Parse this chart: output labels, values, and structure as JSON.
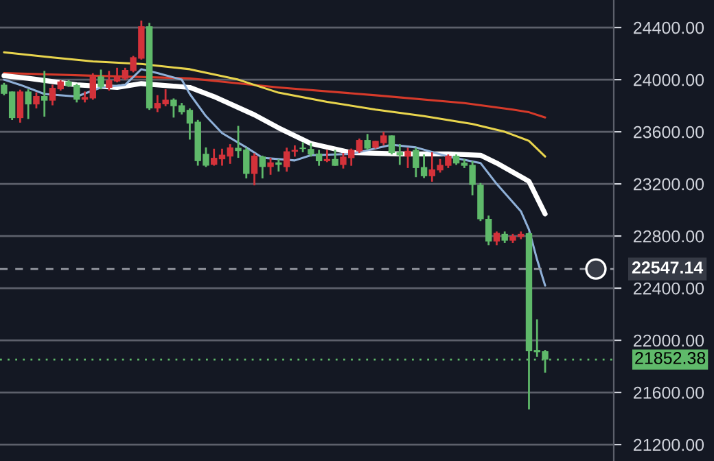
{
  "chart_data": {
    "type": "candlestick",
    "categories": [
      null,
      null,
      null,
      null,
      null,
      null,
      null,
      null,
      null,
      null,
      null,
      null,
      null,
      null,
      null,
      null,
      null,
      null,
      null,
      null,
      null,
      null,
      null,
      null,
      null,
      null,
      null,
      null,
      null,
      null,
      null,
      null,
      null,
      null,
      null,
      null,
      null,
      null,
      null,
      null,
      null,
      null,
      null,
      null,
      null,
      null,
      null,
      null,
      null,
      null,
      null,
      null,
      null,
      null,
      null,
      null,
      null,
      null,
      null,
      null,
      null,
      null,
      null,
      null,
      null,
      null,
      null,
      null,
      null,
      null,
      null,
      null,
      null,
      null,
      null,
      null
    ],
    "ohlc": [
      [
        23961,
        23975,
        23880,
        23891
      ],
      [
        23909,
        23909,
        23690,
        23705
      ],
      [
        23705,
        23923,
        23670,
        23909
      ],
      [
        23909,
        23926,
        23698,
        23810
      ],
      [
        23810,
        23902,
        23779,
        23874
      ],
      [
        23874,
        24067,
        23716,
        23839
      ],
      [
        23839,
        23961,
        23803,
        23937
      ],
      [
        23926,
        23996,
        23916,
        23986
      ],
      [
        23986,
        23996,
        23944,
        23951
      ],
      [
        23958,
        23968,
        23825,
        23846
      ],
      [
        23846,
        23909,
        23825,
        23867
      ],
      [
        23856,
        24049,
        23846,
        24025
      ],
      [
        24025,
        24077,
        23926,
        23944
      ],
      [
        23937,
        24067,
        23916,
        23996
      ],
      [
        23986,
        24091,
        23979,
        24021
      ],
      [
        24007,
        24091,
        23996,
        24074
      ],
      [
        24067,
        24182,
        24056,
        24172
      ],
      [
        24161,
        24453,
        24154,
        24410
      ],
      [
        24410,
        24435,
        23768,
        23779
      ],
      [
        23779,
        23881,
        23751,
        23821
      ],
      [
        23811,
        23926,
        23796,
        23846
      ],
      [
        23846,
        23856,
        23709,
        23796
      ],
      [
        23803,
        23821,
        23733,
        23751
      ],
      [
        23768,
        23779,
        23540,
        23663
      ],
      [
        23677,
        23691,
        23340,
        23375
      ],
      [
        23431,
        23480,
        23330,
        23340
      ],
      [
        23347,
        23470,
        23340,
        23400
      ],
      [
        23389,
        23470,
        23340,
        23424
      ],
      [
        23410,
        23505,
        23354,
        23480
      ],
      [
        23477,
        23645,
        23400,
        23452
      ],
      [
        23463,
        23480,
        23242,
        23277
      ],
      [
        23277,
        23435,
        23189,
        23417
      ],
      [
        23410,
        23417,
        23242,
        23330
      ],
      [
        23330,
        23400,
        23270,
        23365
      ],
      [
        23365,
        23389,
        23295,
        23347
      ],
      [
        23329,
        23478,
        23294,
        23450
      ],
      [
        23447,
        23496,
        23409,
        23461
      ],
      [
        23478,
        23520,
        23443,
        23468
      ],
      [
        23468,
        23513,
        23409,
        23426
      ],
      [
        23433,
        23461,
        23339,
        23374
      ],
      [
        23374,
        23461,
        23367,
        23391
      ],
      [
        23391,
        23461,
        23339,
        23339
      ],
      [
        23346,
        23437,
        23318,
        23409
      ],
      [
        23398,
        23471,
        23339,
        23461
      ],
      [
        23450,
        23548,
        23437,
        23537
      ],
      [
        23537,
        23583,
        23461,
        23471
      ],
      [
        23478,
        23530,
        23471,
        23530
      ],
      [
        23513,
        23600,
        23496,
        23572
      ],
      [
        23572,
        23572,
        23426,
        23437
      ],
      [
        23443,
        23506,
        23346,
        23419
      ],
      [
        23409,
        23478,
        23322,
        23454
      ],
      [
        23461,
        23478,
        23252,
        23322
      ],
      [
        23329,
        23426,
        23245,
        23259
      ],
      [
        23259,
        23443,
        23217,
        23311
      ],
      [
        23304,
        23391,
        23287,
        23346
      ],
      [
        23339,
        23426,
        23322,
        23416
      ],
      [
        23416,
        23426,
        23346,
        23357
      ],
      [
        23363,
        23391,
        23322,
        23339
      ],
      [
        23346,
        23374,
        23113,
        23193
      ],
      [
        23193,
        23207,
        22915,
        22929
      ],
      [
        22932,
        22957,
        22730,
        22758
      ],
      [
        22758,
        22835,
        22730,
        22824
      ],
      [
        22817,
        22835,
        22748,
        22765
      ],
      [
        22765,
        22817,
        22748,
        22800
      ],
      [
        22793,
        22835,
        22776,
        22817
      ],
      [
        22821,
        22828,
        21470,
        21916
      ],
      [
        21926,
        22161,
        21874,
        21909
      ],
      [
        21916,
        21926,
        21751,
        21852
      ],
      null,
      null,
      null,
      null,
      null,
      null,
      null,
      null
    ],
    "colors": [
      "#5fb96a",
      "#5fb96a",
      "#d3323a",
      "#5fb96a",
      "#d3323a",
      "#5fb96a",
      "#d3323a",
      "#d3323a",
      "#5fb96a",
      "#5fb96a",
      "#d3323a",
      "#d3323a",
      "#5fb96a",
      "#d3323a",
      "#d3323a",
      "#d3323a",
      "#d3323a",
      "#d3323a",
      "#5fb96a",
      "#d3323a",
      "#d3323a",
      "#5fb96a",
      "#5fb96a",
      "#5fb96a",
      "#5fb96a",
      "#5fb96a",
      "#d3323a",
      "#d3323a",
      "#d3323a",
      "#5fb96a",
      "#5fb96a",
      "#d3323a",
      "#5fb96a",
      "#d3323a",
      "#5fb96a",
      "#d3323a",
      "#d3323a",
      "#5fb96a",
      "#5fb96a",
      "#5fb96a",
      "#d3323a",
      "#5fb96a",
      "#d3323a",
      "#d3323a",
      "#d3323a",
      "#5fb96a",
      "#d3323a",
      "#d3323a",
      "#5fb96a",
      "#5fb96a",
      "#d3323a",
      "#5fb96a",
      "#5fb96a",
      "#d3323a",
      "#d3323a",
      "#d3323a",
      "#5fb96a",
      "#5fb96a",
      "#5fb96a",
      "#5fb96a",
      "#5fb96a",
      "#d3323a",
      "#5fb96a",
      "#d3323a",
      "#d3323a",
      "#5fb96a",
      "#5fb96a",
      "#5fb96a",
      null,
      null,
      null,
      null,
      null,
      null,
      null,
      null
    ],
    "series": [
      {
        "type": "line",
        "color": "#d63a2a",
        "values": [
          24050,
          null,
          null,
          null,
          null,
          null,
          null,
          null,
          null,
          null,
          null,
          24030,
          null,
          null,
          null,
          null,
          null,
          null,
          null,
          null,
          null,
          null,
          null,
          24010,
          null,
          null,
          null,
          null,
          null,
          null,
          null,
          null,
          null,
          null,
          23940,
          null,
          null,
          null,
          null,
          null,
          null,
          null,
          null,
          null,
          null,
          null,
          23880,
          null,
          null,
          null,
          null,
          null,
          null,
          null,
          null,
          null,
          null,
          23820,
          null,
          null,
          null,
          null,
          null,
          23770,
          null,
          23750,
          null,
          23710,
          null,
          null,
          null,
          null,
          null,
          null,
          null,
          null
        ]
      },
      {
        "type": "line",
        "color": "#e8d44d",
        "values": [
          24210,
          null,
          null,
          null,
          null,
          null,
          24170,
          null,
          null,
          null,
          null,
          24140,
          null,
          null,
          null,
          null,
          null,
          24120,
          null,
          null,
          null,
          null,
          null,
          24080,
          null,
          null,
          null,
          null,
          null,
          24000,
          null,
          null,
          null,
          null,
          23900,
          null,
          null,
          null,
          null,
          null,
          23830,
          null,
          null,
          null,
          null,
          null,
          23770,
          null,
          null,
          null,
          null,
          null,
          23720,
          null,
          null,
          null,
          null,
          null,
          23660,
          null,
          null,
          null,
          23600,
          null,
          null,
          23530,
          null,
          23410,
          null,
          null,
          null,
          null,
          null,
          null,
          null,
          null
        ]
      },
      {
        "type": "line",
        "color": "#ffffff",
        "values": [
          24030,
          null,
          null,
          24010,
          null,
          null,
          null,
          null,
          null,
          23960,
          null,
          null,
          null,
          null,
          23940,
          null,
          null,
          23970,
          null,
          null,
          null,
          null,
          null,
          23940,
          null,
          null,
          23870,
          null,
          null,
          null,
          null,
          23730,
          null,
          null,
          23630,
          null,
          null,
          null,
          23510,
          null,
          null,
          null,
          null,
          23440,
          null,
          null,
          null,
          null,
          null,
          23430,
          null,
          null,
          null,
          null,
          null,
          23430,
          null,
          null,
          null,
          23420,
          null,
          23360,
          null,
          null,
          null,
          23220,
          null,
          22970,
          null,
          null,
          null,
          null,
          null,
          null,
          null,
          null
        ]
      },
      {
        "type": "line",
        "color": "#8fb0d8",
        "values": [
          24000,
          null,
          23960,
          null,
          null,
          23890,
          null,
          null,
          null,
          23870,
          null,
          null,
          23940,
          null,
          null,
          23960,
          null,
          24080,
          null,
          24050,
          null,
          null,
          24000,
          23890,
          null,
          23720,
          null,
          23590,
          null,
          null,
          23480,
          null,
          23400,
          null,
          null,
          null,
          23380,
          null,
          23420,
          null,
          null,
          null,
          null,
          23430,
          null,
          null,
          null,
          null,
          23500,
          null,
          null,
          23480,
          null,
          null,
          null,
          23410,
          null,
          null,
          null,
          23360,
          null,
          23200,
          null,
          null,
          22990,
          22850,
          22620,
          22420,
          null,
          null,
          null,
          null,
          null,
          null,
          null,
          null
        ]
      }
    ],
    "ylim": [
      21074,
      24611
    ],
    "yticks": [
      {
        "value": 21200,
        "label": "21200.00"
      },
      {
        "value": 21600,
        "label": "21600.00"
      },
      {
        "value": 22000,
        "label": "22000.00"
      },
      {
        "value": 22400,
        "label": "22400.00"
      },
      {
        "value": 22800,
        "label": "22800.00"
      },
      {
        "value": 23200,
        "label": "23200.00"
      },
      {
        "value": 23600,
        "label": "23600.00"
      },
      {
        "value": 24000,
        "label": "24000.00"
      },
      {
        "value": 24400,
        "label": "24400.00"
      }
    ],
    "ref_lines": [
      {
        "axis": "y",
        "value": 22547.14,
        "label": "22547.14",
        "color": "#9598a1",
        "line_style": "dashed"
      },
      {
        "axis": "y",
        "value": 21852.38,
        "label": "21852.38",
        "color": "#5fb96a",
        "line_style": "dotted"
      }
    ],
    "grid": "y",
    "legend": false,
    "tick_labels": "y",
    "marker": "none",
    "line_style": "solid"
  }
}
